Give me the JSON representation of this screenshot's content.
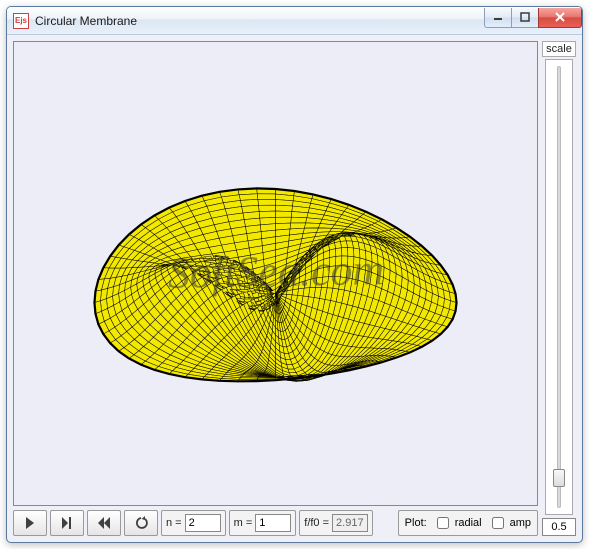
{
  "window": {
    "icon_text": "Ejs",
    "title": "Circular Membrane"
  },
  "sidebar": {
    "label": "scale",
    "value": "0.5",
    "thumb_position_pct": 90
  },
  "fields": {
    "n_label": "n =",
    "n_value": "2",
    "m_label": "m =",
    "m_value": "1",
    "ratio_label": "f/f0 =",
    "ratio_value": "2.917"
  },
  "plot": {
    "label": "Plot:",
    "radial_label": "radial",
    "radial_checked": false,
    "amp_label": "amp",
    "amp_checked": false
  },
  "watermark": "SoftSea.com",
  "membrane": {
    "surface_color": "#f2e800",
    "mesh_color": "#000000",
    "background": "#ededf7"
  },
  "colors": {
    "close_button": "#d84b42",
    "titlebar_text": "#1a1a1a"
  }
}
